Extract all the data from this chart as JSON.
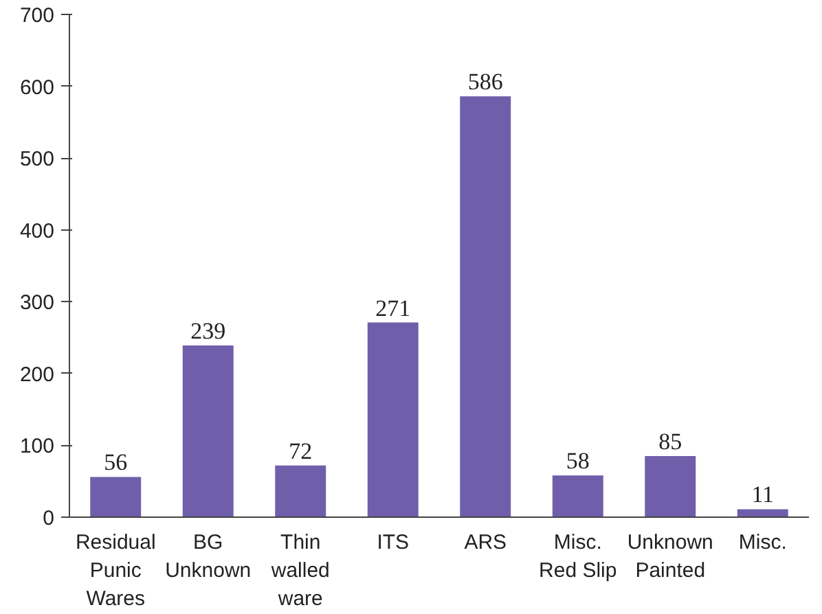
{
  "chart_data": {
    "type": "bar",
    "categories": [
      "Residual\nPunic\nWares",
      "BG\nUnknown",
      "Thin\nwalled\nware",
      "ITS",
      "ARS",
      "Misc.\nRed Slip",
      "Unknown\nPainted",
      "Misc."
    ],
    "values": [
      56,
      239,
      72,
      271,
      586,
      58,
      85,
      11
    ],
    "color": "#6f5fab",
    "ylim": [
      0,
      700
    ],
    "yticks": [
      0,
      100,
      200,
      300,
      400,
      500,
      600,
      700
    ],
    "grid": false,
    "data_labels": true
  }
}
